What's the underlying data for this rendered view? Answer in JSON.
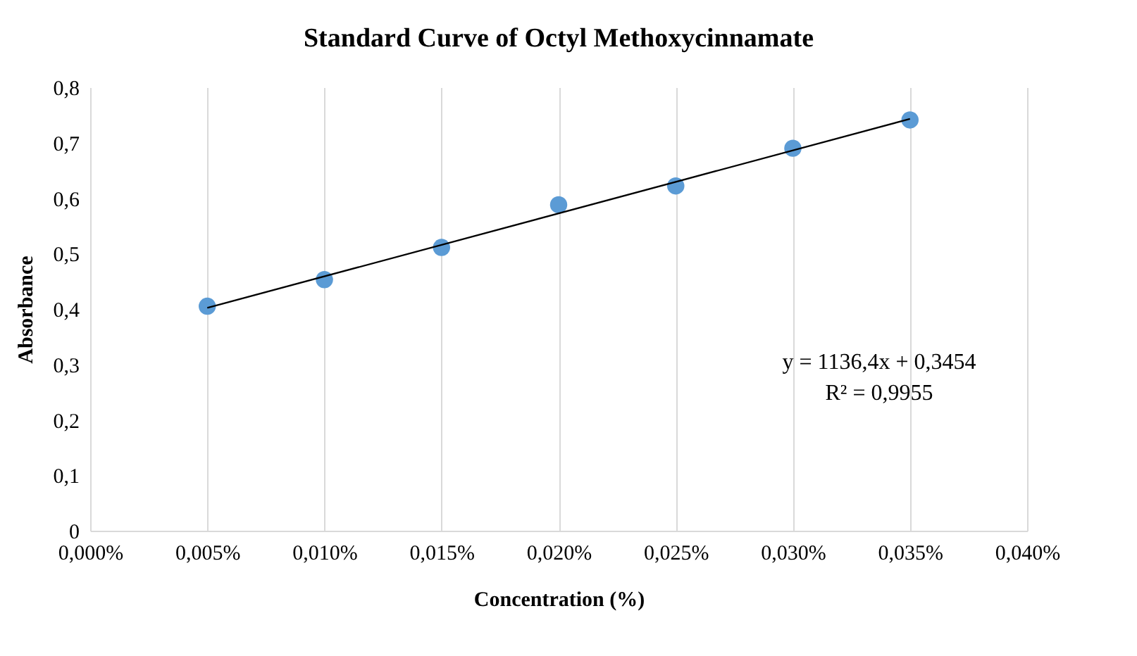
{
  "chart_data": {
    "type": "scatter",
    "title": "Standard Curve of Octyl Methoxycinnamate",
    "xlabel": "Concentration (%)",
    "ylabel": "Absorbance",
    "x": [
      0.005,
      0.01,
      0.015,
      0.02,
      0.025,
      0.03,
      0.035
    ],
    "series": [
      {
        "color": "#5b9bd5",
        "marker": "circle",
        "values": [
          0.405,
          0.453,
          0.511,
          0.588,
          0.622,
          0.69,
          0.741
        ]
      },
      {
        "type": "line",
        "color": "#000000",
        "marker": "none",
        "x": [
          0.005,
          0.035
        ],
        "values": [
          0.402,
          0.743
        ]
      }
    ],
    "xlim": [
      0,
      0.04
    ],
    "xticks": [
      {
        "value": 0,
        "label": "0,000%"
      },
      {
        "value": 0.005,
        "label": "0,005%"
      },
      {
        "value": 0.01,
        "label": "0,010%"
      },
      {
        "value": 0.015,
        "label": "0,015%"
      },
      {
        "value": 0.02,
        "label": "0,020%"
      },
      {
        "value": 0.025,
        "label": "0,025%"
      },
      {
        "value": 0.03,
        "label": "0,030%"
      },
      {
        "value": 0.035,
        "label": "0,035%"
      },
      {
        "value": 0.04,
        "label": "0,040%"
      }
    ],
    "ylim": [
      0,
      0.8
    ],
    "yticks": [
      0,
      {
        "value": 0.1,
        "label": "0,1"
      },
      {
        "value": 0.2,
        "label": "0,2"
      },
      {
        "value": 0.3,
        "label": "0,3"
      },
      {
        "value": 0.4,
        "label": "0,4"
      },
      {
        "value": 0.5,
        "label": "0,5"
      },
      {
        "value": 0.6,
        "label": "0,6"
      },
      {
        "value": 0.7,
        "label": "0,7"
      },
      {
        "value": 0.8,
        "label": "0,8"
      }
    ],
    "grid": "x",
    "annotations": [
      "y = 1136,4x + 0,3454",
      "R² = 0,9955"
    ]
  }
}
